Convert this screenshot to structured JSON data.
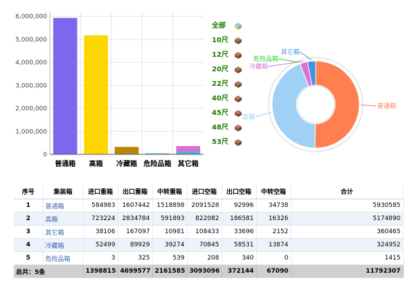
{
  "chart_data": [
    {
      "type": "bar",
      "categories": [
        "普通箱",
        "高箱",
        "冷藏箱",
        "危险品箱",
        "其它箱"
      ],
      "series": [
        {
          "values": [
            5930585,
            5174890,
            324952,
            1415,
            360465
          ]
        }
      ],
      "colors": [
        "#7b68ee",
        "#ffd700",
        "#b8860b",
        "#4fb3d9",
        "#da70d6"
      ],
      "yticks": [
        "0",
        "1,000,000",
        "2,000,000",
        "3,000,000",
        "4,000,000",
        "5,000,000",
        "6,000,000"
      ],
      "ylim": [
        0,
        6200000
      ]
    },
    {
      "type": "pie",
      "categories": [
        "普通箱",
        "高箱",
        "冷藏箱",
        "危险品箱",
        "其它箱"
      ],
      "values": [
        5930585,
        5174890,
        324952,
        1415,
        360465
      ],
      "colors": [
        "#ff7f50",
        "#9fd0f5",
        "#da70d6",
        "#32cd32",
        "#4a90e2"
      ],
      "labels": [
        "普通箱",
        "高箱",
        "冷藏箱",
        "危险品箱",
        "其它箱"
      ]
    }
  ],
  "sizes": [
    {
      "label": "全部",
      "icon": "multi-cube-icon"
    },
    {
      "label": "10尺",
      "icon": "cube-icon"
    },
    {
      "label": "12尺",
      "icon": "cube-icon"
    },
    {
      "label": "20尺",
      "icon": "cube-icon"
    },
    {
      "label": "22尺",
      "icon": "cube-icon"
    },
    {
      "label": "40尺",
      "icon": "cube-icon"
    },
    {
      "label": "45尺",
      "icon": "cube-icon"
    },
    {
      "label": "48尺",
      "icon": "cube-icon"
    },
    {
      "label": "53尺",
      "icon": "cube-icon"
    }
  ],
  "table": {
    "headers": [
      "序号",
      "集装箱",
      "进口重箱",
      "出口重箱",
      "中转重箱",
      "进口空箱",
      "出口空箱",
      "中转空箱",
      "合计"
    ],
    "rows": [
      [
        "1",
        "普通箱",
        "584983",
        "1607442",
        "1518898",
        "2091528",
        "92996",
        "34738",
        "5930585"
      ],
      [
        "2",
        "高箱",
        "723224",
        "2834784",
        "591893",
        "822082",
        "186581",
        "16326",
        "5174890"
      ],
      [
        "3",
        "其它箱",
        "38106",
        "167097",
        "10981",
        "108433",
        "33696",
        "2152",
        "360465"
      ],
      [
        "4",
        "冷藏箱",
        "52499",
        "89929",
        "39274",
        "70845",
        "58531",
        "13874",
        "324952"
      ],
      [
        "5",
        "危险品箱",
        "3",
        "325",
        "539",
        "208",
        "340",
        "0",
        "1415"
      ]
    ],
    "footer": [
      "总共：5条",
      "1398815",
      "4699577",
      "2161585",
      "3093096",
      "372144",
      "67090",
      "11792307"
    ]
  }
}
